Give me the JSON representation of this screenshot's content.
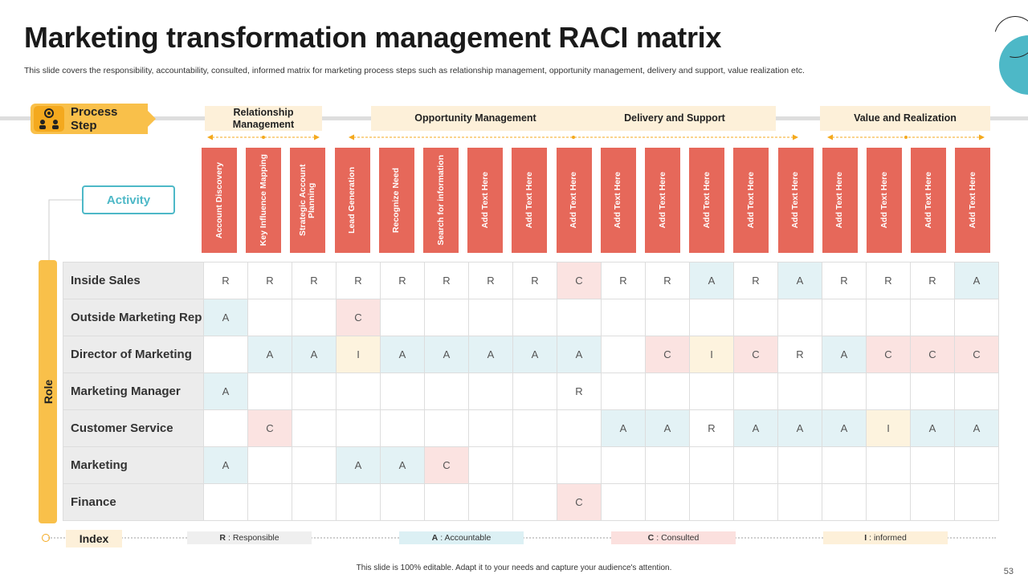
{
  "title": "Marketing transformation management RACI matrix",
  "subtitle": "This slide covers the responsibility, accountability, consulted, informed  matrix for marketing process steps such as relationship management, opportunity management, delivery and support, value realization etc.",
  "process_step": {
    "label": "Process Step",
    "icon": "people-gear-icon"
  },
  "phases": [
    {
      "label": "Relationship Management"
    },
    {
      "label": "Opportunity  Management"
    },
    {
      "label": "Delivery and Support"
    },
    {
      "label": "Value and Realization"
    }
  ],
  "activity_label": "Activity",
  "role_label": "Role",
  "activities": [
    "Account Discovery",
    "Key Influence Mapping",
    "Strategic Account Planning",
    "Lead Generation",
    "Recognize Need",
    "Search for information",
    "Add Text Here",
    "Add Text Here",
    "Add Text Here",
    "Add Text Here",
    "Add Text Here",
    "Add Text Here",
    "Add Text Here",
    "Add Text Here",
    "Add Text Here",
    "Add Text Here",
    "Add Text Here",
    "Add Text Here"
  ],
  "matrix": [
    {
      "role": "Inside Sales",
      "cells": [
        "R",
        "R",
        "R",
        "R",
        "R",
        "R",
        "R",
        "R",
        "C",
        "R",
        "R",
        "A",
        "R",
        "A",
        "R",
        "R",
        "R",
        "A"
      ]
    },
    {
      "role": "Outside Marketing Rep",
      "cells": [
        "A",
        "",
        "",
        "C",
        "",
        "",
        "",
        "",
        "",
        "",
        "",
        "",
        "",
        "",
        "",
        "",
        "",
        ""
      ]
    },
    {
      "role": "Director of Marketing",
      "cells": [
        "",
        "A",
        "A",
        "I",
        "A",
        "A",
        "A",
        "A",
        "A",
        "",
        "C",
        "I",
        "C",
        "R",
        "A",
        "C",
        "C",
        "C"
      ]
    },
    {
      "role": "Marketing Manager",
      "cells": [
        "A",
        "",
        "",
        "",
        "",
        "",
        "",
        "",
        "R",
        "",
        "",
        "",
        "",
        "",
        "",
        "",
        "",
        ""
      ]
    },
    {
      "role": "Customer Service",
      "cells": [
        "",
        "C",
        "",
        "",
        "",
        "",
        "",
        "",
        "",
        "A",
        "A",
        "R",
        "A",
        "A",
        "A",
        "I",
        "A",
        "A"
      ]
    },
    {
      "role": "Marketing",
      "cells": [
        "A",
        "",
        "",
        "A",
        "A",
        "C",
        "",
        "",
        "",
        "",
        "",
        "",
        "",
        "",
        "",
        "",
        "",
        ""
      ]
    },
    {
      "role": "Finance",
      "cells": [
        "",
        "",
        "",
        "",
        "",
        "",
        "",
        "",
        "C",
        "",
        "",
        "",
        "",
        "",
        "",
        "",
        "",
        ""
      ]
    }
  ],
  "index": {
    "label": "Index",
    "items": [
      {
        "key": "R",
        "desc": ": Responsible",
        "color": "#efefef"
      },
      {
        "key": "A",
        "desc": ": Accountable",
        "color": "#dcf0f4"
      },
      {
        "key": "C",
        "desc": ": Consulted",
        "color": "#fbe0de"
      },
      {
        "key": "I",
        "desc": ": informed",
        "color": "#fdf0d9"
      }
    ]
  },
  "footer": "This slide is 100% editable. Adapt it to your needs and capture your audience's attention.",
  "page_number": "53",
  "colors": {
    "accent_red": "#e6685a",
    "accent_teal": "#4db8c7",
    "accent_yellow": "#f9c04a"
  }
}
